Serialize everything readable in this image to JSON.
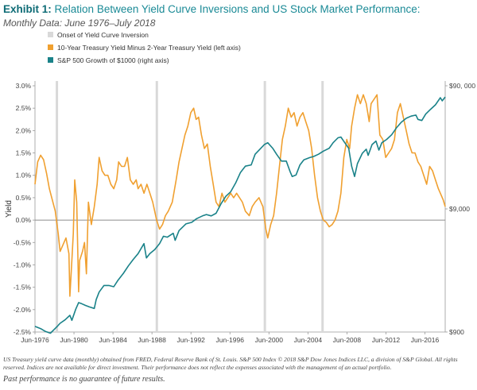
{
  "header": {
    "exhibit": "Exhibit 1:",
    "title": "Relation Between Yield Curve Inversions and US Stock Market Performance:",
    "subtitle": "Monthly Data: June 1976–July 2018"
  },
  "chart_data": {
    "type": "line",
    "ylabel": "Yield",
    "y_left_range": [
      -2.5,
      3.0
    ],
    "y_left_ticks": [
      "-2.5%",
      "-2.0%",
      "-1.5%",
      "-1.0%",
      "-0.5%",
      "0.0%",
      "0.5%",
      "1.0%",
      "1.5%",
      "2.0%",
      "2.5%",
      "3.0%"
    ],
    "y_right_scale": "log",
    "y_right_range": [
      900,
      90000
    ],
    "y_right_ticks": [
      "$900",
      "$9,000",
      "$90, 000"
    ],
    "x_range": [
      1976.42,
      2018.5
    ],
    "x_ticks": [
      "Jun-1976",
      "Jun-1980",
      "Jun-1984",
      "Jun-1988",
      "Jun-1992",
      "Jun-1996",
      "Jun-2000",
      "Jun-2004",
      "Jun-2008",
      "Jun-2012",
      "Jun-2016"
    ],
    "inversion_onsets": [
      1978.67,
      1988.92,
      2000.0,
      2005.92
    ],
    "legend": [
      {
        "label": "Onset of Yield Curve Inversion",
        "color": "#d9d9d9"
      },
      {
        "label": "10-Year Treasury Yield Minus 2-Year Treasury Yield (left axis)",
        "color": "#f0a030"
      },
      {
        "label": "S&P 500 Growth of $1000 (right axis)",
        "color": "#1a8289"
      }
    ],
    "series": [
      {
        "name": "10-Year Treasury Yield Minus 2-Year Treasury Yield",
        "axis": "left",
        "color": "#f0a030",
        "points": [
          [
            1976.42,
            0.8
          ],
          [
            1976.7,
            1.3
          ],
          [
            1977.0,
            1.45
          ],
          [
            1977.3,
            1.35
          ],
          [
            1977.6,
            1.05
          ],
          [
            1977.9,
            0.7
          ],
          [
            1978.2,
            0.45
          ],
          [
            1978.5,
            0.2
          ],
          [
            1978.8,
            -0.3
          ],
          [
            1979.0,
            -0.7
          ],
          [
            1979.3,
            -0.55
          ],
          [
            1979.6,
            -0.4
          ],
          [
            1979.9,
            -0.75
          ],
          [
            1980.0,
            -1.7
          ],
          [
            1980.2,
            -0.9
          ],
          [
            1980.35,
            -0.3
          ],
          [
            1980.5,
            0.9
          ],
          [
            1980.7,
            0.4
          ],
          [
            1980.9,
            -1.6
          ],
          [
            1981.0,
            -0.9
          ],
          [
            1981.3,
            -0.7
          ],
          [
            1981.5,
            -0.5
          ],
          [
            1981.7,
            -1.2
          ],
          [
            1981.9,
            0.4
          ],
          [
            1982.2,
            -0.1
          ],
          [
            1982.5,
            0.3
          ],
          [
            1982.8,
            0.8
          ],
          [
            1983.0,
            1.4
          ],
          [
            1983.3,
            1.1
          ],
          [
            1983.6,
            1.0
          ],
          [
            1983.9,
            1.0
          ],
          [
            1984.2,
            0.8
          ],
          [
            1984.5,
            0.7
          ],
          [
            1984.8,
            0.9
          ],
          [
            1985.0,
            1.3
          ],
          [
            1985.3,
            1.2
          ],
          [
            1985.6,
            1.2
          ],
          [
            1985.9,
            1.4
          ],
          [
            1986.2,
            0.9
          ],
          [
            1986.5,
            0.8
          ],
          [
            1986.8,
            0.9
          ],
          [
            1987.0,
            0.7
          ],
          [
            1987.3,
            0.8
          ],
          [
            1987.6,
            0.6
          ],
          [
            1987.9,
            0.8
          ],
          [
            1988.2,
            0.6
          ],
          [
            1988.5,
            0.4
          ],
          [
            1988.9,
            0.0
          ],
          [
            1989.2,
            -0.2
          ],
          [
            1989.5,
            -0.1
          ],
          [
            1989.8,
            0.1
          ],
          [
            1990.1,
            0.2
          ],
          [
            1990.5,
            0.4
          ],
          [
            1990.9,
            0.9
          ],
          [
            1991.2,
            1.3
          ],
          [
            1991.5,
            1.6
          ],
          [
            1991.8,
            1.9
          ],
          [
            1992.1,
            2.1
          ],
          [
            1992.4,
            2.4
          ],
          [
            1992.7,
            2.5
          ],
          [
            1992.95,
            2.25
          ],
          [
            1993.2,
            2.3
          ],
          [
            1993.5,
            1.9
          ],
          [
            1993.8,
            1.6
          ],
          [
            1994.1,
            1.7
          ],
          [
            1994.4,
            1.2
          ],
          [
            1994.7,
            0.8
          ],
          [
            1995.0,
            0.4
          ],
          [
            1995.3,
            0.3
          ],
          [
            1995.6,
            0.6
          ],
          [
            1995.9,
            0.4
          ],
          [
            1996.2,
            0.5
          ],
          [
            1996.5,
            0.6
          ],
          [
            1996.8,
            0.5
          ],
          [
            1997.1,
            0.6
          ],
          [
            1997.4,
            0.5
          ],
          [
            1997.7,
            0.4
          ],
          [
            1998.0,
            0.2
          ],
          [
            1998.4,
            0.1
          ],
          [
            1998.7,
            0.3
          ],
          [
            1999.0,
            0.4
          ],
          [
            1999.4,
            0.5
          ],
          [
            1999.8,
            0.3
          ],
          [
            2000.1,
            -0.2
          ],
          [
            2000.3,
            -0.4
          ],
          [
            2000.6,
            -0.1
          ],
          [
            2000.9,
            0.1
          ],
          [
            2001.2,
            0.6
          ],
          [
            2001.5,
            1.2
          ],
          [
            2001.8,
            1.8
          ],
          [
            2002.1,
            2.1
          ],
          [
            2002.4,
            2.5
          ],
          [
            2002.7,
            2.3
          ],
          [
            2003.0,
            2.4
          ],
          [
            2003.3,
            2.1
          ],
          [
            2003.6,
            2.3
          ],
          [
            2003.9,
            2.4
          ],
          [
            2004.2,
            2.2
          ],
          [
            2004.5,
            2.0
          ],
          [
            2004.8,
            1.6
          ],
          [
            2005.1,
            1.0
          ],
          [
            2005.4,
            0.5
          ],
          [
            2005.7,
            0.2
          ],
          [
            2006.0,
            0.0
          ],
          [
            2006.3,
            -0.05
          ],
          [
            2006.6,
            -0.15
          ],
          [
            2006.9,
            -0.1
          ],
          [
            2007.2,
            0.0
          ],
          [
            2007.5,
            0.2
          ],
          [
            2007.8,
            0.6
          ],
          [
            2008.1,
            1.4
          ],
          [
            2008.4,
            1.8
          ],
          [
            2008.7,
            1.6
          ],
          [
            2008.9,
            2.1
          ],
          [
            2009.2,
            2.5
          ],
          [
            2009.5,
            2.8
          ],
          [
            2009.8,
            2.6
          ],
          [
            2010.1,
            2.8
          ],
          [
            2010.4,
            2.6
          ],
          [
            2010.7,
            2.2
          ],
          [
            2010.9,
            2.6
          ],
          [
            2011.2,
            2.7
          ],
          [
            2011.5,
            2.8
          ],
          [
            2011.8,
            1.9
          ],
          [
            2012.1,
            1.8
          ],
          [
            2012.4,
            1.4
          ],
          [
            2012.7,
            1.5
          ],
          [
            2013.0,
            1.6
          ],
          [
            2013.3,
            1.8
          ],
          [
            2013.6,
            2.4
          ],
          [
            2013.9,
            2.6
          ],
          [
            2014.2,
            2.3
          ],
          [
            2014.5,
            2.0
          ],
          [
            2014.8,
            1.7
          ],
          [
            2015.1,
            1.5
          ],
          [
            2015.4,
            1.5
          ],
          [
            2015.7,
            1.3
          ],
          [
            2016.0,
            1.2
          ],
          [
            2016.3,
            1.0
          ],
          [
            2016.6,
            0.8
          ],
          [
            2016.9,
            1.2
          ],
          [
            2017.2,
            1.1
          ],
          [
            2017.5,
            0.9
          ],
          [
            2017.8,
            0.7
          ],
          [
            2018.1,
            0.55
          ],
          [
            2018.3,
            0.45
          ],
          [
            2018.5,
            0.3
          ]
        ]
      },
      {
        "name": "S&P 500 Growth of $1000",
        "axis": "right",
        "color": "#1a8289",
        "points": [
          [
            1976.42,
            1000
          ],
          [
            1977.0,
            960
          ],
          [
            1977.5,
            910
          ],
          [
            1978.0,
            880
          ],
          [
            1978.3,
            930
          ],
          [
            1978.7,
            1000
          ],
          [
            1979.0,
            1060
          ],
          [
            1979.5,
            1130
          ],
          [
            1980.0,
            1230
          ],
          [
            1980.2,
            1120
          ],
          [
            1980.6,
            1380
          ],
          [
            1980.9,
            1560
          ],
          [
            1981.2,
            1530
          ],
          [
            1981.6,
            1480
          ],
          [
            1982.0,
            1440
          ],
          [
            1982.5,
            1400
          ],
          [
            1982.7,
            1650
          ],
          [
            1983.0,
            1900
          ],
          [
            1983.5,
            2150
          ],
          [
            1984.0,
            2150
          ],
          [
            1984.5,
            2100
          ],
          [
            1984.9,
            2350
          ],
          [
            1985.5,
            2700
          ],
          [
            1986.0,
            3100
          ],
          [
            1986.5,
            3500
          ],
          [
            1987.0,
            3900
          ],
          [
            1987.6,
            4700
          ],
          [
            1987.85,
            3600
          ],
          [
            1988.2,
            3900
          ],
          [
            1988.7,
            4200
          ],
          [
            1989.2,
            4700
          ],
          [
            1989.6,
            5400
          ],
          [
            1990.0,
            5300
          ],
          [
            1990.6,
            5700
          ],
          [
            1990.8,
            5000
          ],
          [
            1991.2,
            6000
          ],
          [
            1991.9,
            6800
          ],
          [
            1992.5,
            7000
          ],
          [
            1993.0,
            7500
          ],
          [
            1993.6,
            7900
          ],
          [
            1994.0,
            8100
          ],
          [
            1994.5,
            7900
          ],
          [
            1995.0,
            8300
          ],
          [
            1995.5,
            9900
          ],
          [
            1996.0,
            11400
          ],
          [
            1996.5,
            12400
          ],
          [
            1997.0,
            14600
          ],
          [
            1997.5,
            17800
          ],
          [
            1998.0,
            20000
          ],
          [
            1998.6,
            20500
          ],
          [
            1999.0,
            25000
          ],
          [
            1999.5,
            27500
          ],
          [
            1999.95,
            30000
          ],
          [
            2000.3,
            31000
          ],
          [
            2000.8,
            28000
          ],
          [
            2001.2,
            25000
          ],
          [
            2001.7,
            22000
          ],
          [
            2002.2,
            22000
          ],
          [
            2002.6,
            18000
          ],
          [
            2002.8,
            16500
          ],
          [
            2003.2,
            17000
          ],
          [
            2003.6,
            20500
          ],
          [
            2004.0,
            22500
          ],
          [
            2004.6,
            23500
          ],
          [
            2005.0,
            24000
          ],
          [
            2005.5,
            25000
          ],
          [
            2006.0,
            26500
          ],
          [
            2006.6,
            28000
          ],
          [
            2007.0,
            31000
          ],
          [
            2007.5,
            34000
          ],
          [
            2007.8,
            34500
          ],
          [
            2008.2,
            31000
          ],
          [
            2008.6,
            28000
          ],
          [
            2008.9,
            20000
          ],
          [
            2009.2,
            16500
          ],
          [
            2009.5,
            21000
          ],
          [
            2010.0,
            25500
          ],
          [
            2010.4,
            27500
          ],
          [
            2010.6,
            24500
          ],
          [
            2011.0,
            30000
          ],
          [
            2011.4,
            32000
          ],
          [
            2011.7,
            27000
          ],
          [
            2012.0,
            31000
          ],
          [
            2012.5,
            33000
          ],
          [
            2013.0,
            36000
          ],
          [
            2013.5,
            41000
          ],
          [
            2014.0,
            45500
          ],
          [
            2014.5,
            49000
          ],
          [
            2015.0,
            51000
          ],
          [
            2015.5,
            52000
          ],
          [
            2015.7,
            48000
          ],
          [
            2016.1,
            47000
          ],
          [
            2016.5,
            53000
          ],
          [
            2017.0,
            58000
          ],
          [
            2017.5,
            63000
          ],
          [
            2018.0,
            72000
          ],
          [
            2018.2,
            68000
          ],
          [
            2018.5,
            73000
          ]
        ]
      }
    ]
  },
  "footnote": {
    "source": "US Treasury yield curve data (monthly) obtained from FRED, Federal Reserve Bank of St. Louis. S&P 500 Index © 2018 S&P Dow Jones Indices LLC, a division of S&P Global. All rights reserved. Indices are not available for direct investment. Their performance does not reflect the expenses associated with the management of an actual portfolio.",
    "disclaimer": "Past performance is no guarantee of future results."
  }
}
